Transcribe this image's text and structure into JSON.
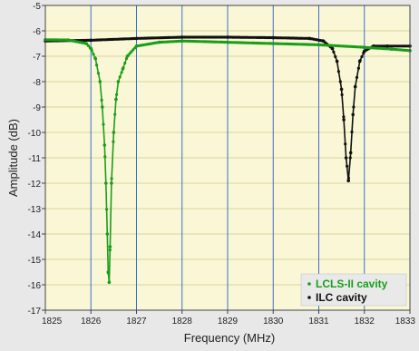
{
  "chart_data": {
    "type": "line",
    "xlabel": "Frequency (MHz)",
    "ylabel": "Amplitude (dB)",
    "xlim": [
      1825,
      1833
    ],
    "ylim": [
      -17,
      -5
    ],
    "x_ticks": [
      1825,
      1826,
      1827,
      1828,
      1829,
      1830,
      1831,
      1832,
      1833
    ],
    "y_ticks": [
      -5,
      -6,
      -7,
      -8,
      -9,
      -10,
      -11,
      -12,
      -13,
      -14,
      -15,
      -16,
      -17
    ],
    "x_tick_labels": [
      "1825",
      "1826",
      "1827",
      "1828",
      "1829",
      "1830",
      "1831",
      "1832",
      "1833"
    ],
    "y_tick_labels": [
      "-5",
      "-6",
      "-7",
      "-8",
      "-9",
      "-10",
      "-11",
      "-12",
      "-13",
      "-14",
      "-15",
      "-16",
      "-17"
    ],
    "grid": true,
    "legend_position": "bottom-right",
    "series": [
      {
        "name": "LCLS-II cavity",
        "color": "#1a9e1a",
        "x": [
          1825.0,
          1825.5,
          1825.9,
          1826.0,
          1826.1,
          1826.2,
          1826.25,
          1826.3,
          1826.33,
          1826.36,
          1826.38,
          1826.4,
          1826.42,
          1826.45,
          1826.5,
          1826.55,
          1826.6,
          1826.7,
          1826.8,
          1827.0,
          1827.5,
          1828.0,
          1829.0,
          1830.0,
          1831.0,
          1832.0,
          1832.6,
          1833.0
        ],
        "y": [
          -6.35,
          -6.36,
          -6.5,
          -6.7,
          -7.1,
          -8.0,
          -9.0,
          -10.5,
          -12.0,
          -14.0,
          -15.5,
          -15.9,
          -14.5,
          -12.0,
          -10.0,
          -8.7,
          -8.0,
          -7.5,
          -7.0,
          -6.6,
          -6.45,
          -6.4,
          -6.45,
          -6.5,
          -6.55,
          -6.65,
          -6.72,
          -6.78
        ]
      },
      {
        "name": "ILC cavity",
        "color": "#111111",
        "x": [
          1825.0,
          1826.0,
          1827.0,
          1828.0,
          1829.0,
          1830.0,
          1830.8,
          1831.1,
          1831.3,
          1831.4,
          1831.5,
          1831.55,
          1831.6,
          1831.65,
          1831.7,
          1831.75,
          1831.8,
          1831.9,
          1832.0,
          1832.2,
          1832.5,
          1833.0
        ],
        "y": [
          -6.4,
          -6.37,
          -6.3,
          -6.25,
          -6.25,
          -6.27,
          -6.3,
          -6.4,
          -6.7,
          -7.2,
          -8.3,
          -9.5,
          -11.0,
          -11.9,
          -10.8,
          -9.3,
          -8.2,
          -7.2,
          -6.8,
          -6.6,
          -6.6,
          -6.6
        ]
      }
    ],
    "colors": {
      "plot_background": "#faf7d6",
      "grid_vertical": "#3a6fd0",
      "grid_horizontal": "#d8d4a0",
      "legend_background": "#e9e9e9"
    }
  }
}
